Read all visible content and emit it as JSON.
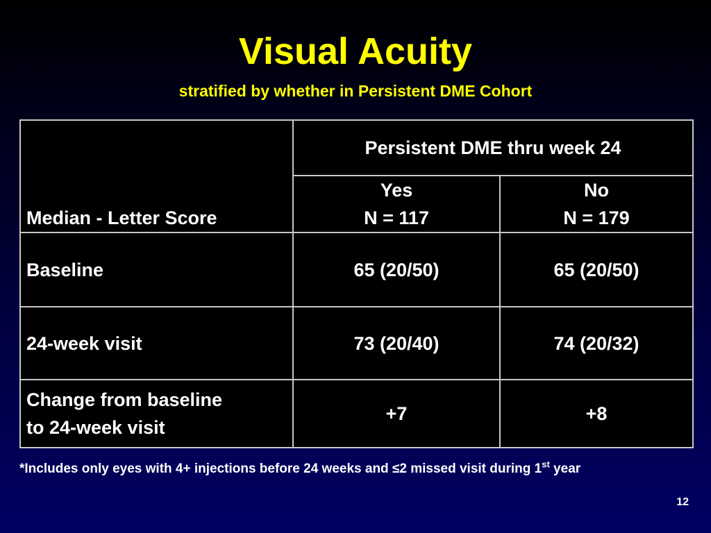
{
  "title": "Visual Acuity",
  "subtitle": "stratified by whether in Persistent DME Cohort",
  "table": {
    "row_header": "Median - Letter Score",
    "group_header": "Persistent DME thru week 24",
    "columns": [
      {
        "label": "Yes",
        "n": "N = 117"
      },
      {
        "label": "No",
        "n": "N = 179"
      }
    ],
    "rows": [
      {
        "label": "Baseline",
        "values": [
          "65 (20/50)",
          "65 (20/50)"
        ]
      },
      {
        "label": "24-week visit",
        "values": [
          "73 (20/40)",
          "74 (20/32)"
        ]
      },
      {
        "label_line1": "Change from baseline",
        "label_line2": "to 24-week visit",
        "values": [
          "+7",
          "+8"
        ]
      }
    ]
  },
  "footnote": {
    "main": "*Includes only eyes with 4+ injections before 24 weeks and ≤2 missed visit during 1",
    "superscript": "st",
    "tail": " year"
  },
  "page_number": "12",
  "colors": {
    "title": "#ffff00",
    "text": "#ffffff",
    "table_bg": "#000000",
    "table_border": "#c8c8c8",
    "background_bottom": "#000064"
  }
}
